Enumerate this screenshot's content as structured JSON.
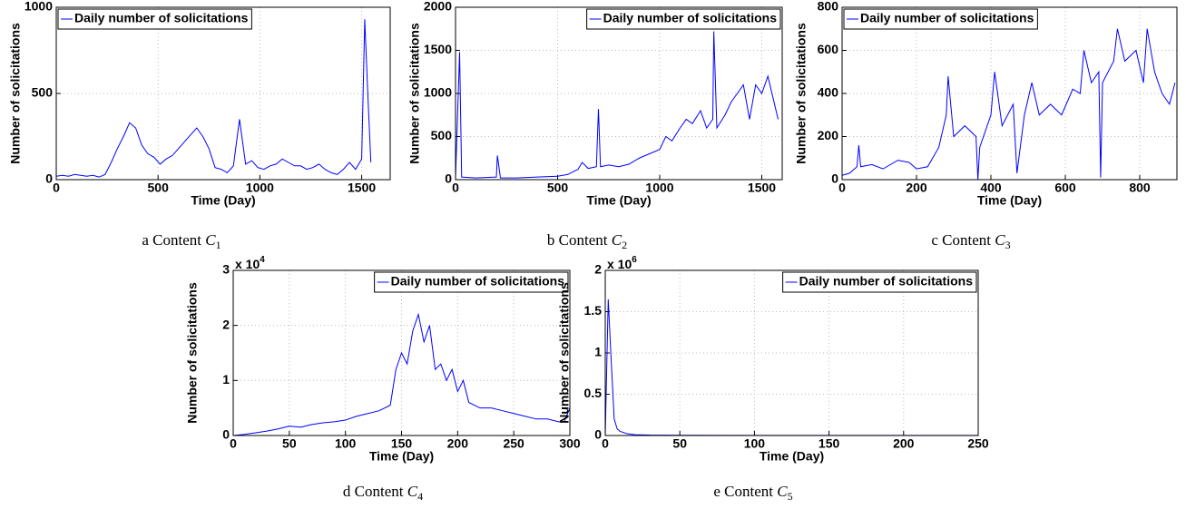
{
  "chart_data": [
    {
      "type": "line",
      "xlabel": "Time (Day)",
      "ylabel": "Number of solicitations",
      "caption_prefix": "a Content",
      "caption_symbol": "C",
      "caption_subscript": "1",
      "xlim": [
        0,
        1640
      ],
      "xticks": [
        0,
        500,
        1000,
        1500
      ],
      "ylim": [
        0,
        1000
      ],
      "yticks": [
        0,
        500,
        1000
      ],
      "grid": true,
      "legend": "upper left",
      "x": [
        0,
        30,
        60,
        90,
        120,
        150,
        180,
        210,
        240,
        270,
        300,
        330,
        360,
        390,
        420,
        450,
        480,
        510,
        540,
        570,
        600,
        630,
        660,
        690,
        720,
        750,
        780,
        810,
        840,
        870,
        900,
        930,
        960,
        990,
        1020,
        1050,
        1080,
        1110,
        1140,
        1170,
        1200,
        1230,
        1260,
        1290,
        1320,
        1350,
        1380,
        1410,
        1440,
        1470,
        1500,
        1515,
        1530,
        1545
      ],
      "series": [
        {
          "name": "Daily number of solicitations",
          "color": "#0000ff",
          "values": [
            20,
            25,
            20,
            30,
            25,
            20,
            25,
            15,
            30,
            100,
            180,
            250,
            330,
            300,
            200,
            150,
            130,
            90,
            120,
            140,
            180,
            220,
            260,
            300,
            250,
            180,
            70,
            60,
            40,
            80,
            350,
            90,
            110,
            70,
            60,
            80,
            90,
            120,
            100,
            80,
            80,
            60,
            70,
            90,
            60,
            40,
            30,
            60,
            100,
            60,
            120,
            930,
            500,
            100
          ]
        }
      ]
    },
    {
      "type": "line",
      "xlabel": "Time (Day)",
      "ylabel": "Number of solicitations",
      "caption_prefix": "b Content",
      "caption_symbol": "C",
      "caption_subscript": "2",
      "xlim": [
        0,
        1600
      ],
      "xticks": [
        0,
        500,
        1000,
        1500
      ],
      "ylim": [
        0,
        2000
      ],
      "yticks": [
        0,
        500,
        1000,
        1500,
        2000
      ],
      "grid": true,
      "legend": "upper right",
      "x": [
        0,
        20,
        30,
        100,
        200,
        205,
        220,
        300,
        400,
        500,
        550,
        600,
        620,
        650,
        690,
        700,
        710,
        750,
        800,
        850,
        900,
        950,
        1000,
        1030,
        1060,
        1100,
        1130,
        1160,
        1200,
        1230,
        1260,
        1265,
        1280,
        1320,
        1350,
        1380,
        1410,
        1440,
        1470,
        1500,
        1530,
        1560,
        1580
      ],
      "series": [
        {
          "name": "Daily number of solicitations",
          "color": "#0000ff",
          "values": [
            20,
            1480,
            30,
            20,
            30,
            280,
            20,
            20,
            30,
            40,
            60,
            120,
            200,
            130,
            150,
            820,
            150,
            170,
            150,
            180,
            250,
            300,
            350,
            500,
            450,
            600,
            700,
            650,
            800,
            600,
            700,
            1720,
            600,
            750,
            900,
            1000,
            1100,
            700,
            1100,
            1000,
            1200,
            900,
            700
          ]
        }
      ]
    },
    {
      "type": "line",
      "xlabel": "Time (Day)",
      "ylabel": "Number of solicitations",
      "caption_prefix": "c Content",
      "caption_symbol": "C",
      "caption_subscript": "3",
      "xlim": [
        0,
        900
      ],
      "xticks": [
        0,
        200,
        400,
        600,
        800
      ],
      "ylim": [
        0,
        800
      ],
      "yticks": [
        0,
        200,
        400,
        600,
        800
      ],
      "grid": true,
      "legend": "upper left",
      "x": [
        0,
        20,
        40,
        45,
        50,
        80,
        110,
        150,
        180,
        200,
        230,
        260,
        280,
        285,
        300,
        330,
        360,
        365,
        370,
        400,
        410,
        430,
        460,
        470,
        490,
        510,
        530,
        560,
        590,
        620,
        640,
        650,
        670,
        690,
        695,
        700,
        730,
        740,
        760,
        790,
        810,
        820,
        840,
        860,
        880,
        895
      ],
      "series": [
        {
          "name": "Daily number of solicitations",
          "color": "#0000ff",
          "values": [
            20,
            30,
            60,
            160,
            60,
            70,
            50,
            90,
            80,
            50,
            60,
            150,
            300,
            480,
            200,
            250,
            200,
            0,
            150,
            300,
            500,
            250,
            350,
            30,
            300,
            450,
            300,
            350,
            300,
            420,
            400,
            600,
            450,
            500,
            10,
            450,
            550,
            700,
            550,
            600,
            450,
            700,
            500,
            400,
            350,
            450
          ]
        }
      ]
    },
    {
      "type": "line",
      "xlabel": "Time (Day)",
      "ylabel": "Number of solicitations",
      "caption_prefix": "d Content",
      "caption_symbol": "C",
      "caption_subscript": "4",
      "y_scale_text": "x 10",
      "y_scale_exponent": "4",
      "xlim": [
        0,
        300
      ],
      "xticks": [
        0,
        50,
        100,
        150,
        200,
        250,
        300
      ],
      "ylim": [
        0,
        30000
      ],
      "yticks": [
        0,
        {
          "value": 10000,
          "label": "1"
        },
        {
          "value": 20000,
          "label": "2"
        },
        {
          "value": 30000,
          "label": "3"
        }
      ],
      "grid": true,
      "legend": "upper right",
      "x": [
        0,
        10,
        20,
        30,
        40,
        50,
        60,
        70,
        80,
        90,
        100,
        110,
        120,
        130,
        140,
        145,
        150,
        155,
        160,
        165,
        170,
        175,
        180,
        185,
        190,
        195,
        200,
        205,
        210,
        220,
        230,
        240,
        250,
        260,
        270,
        280,
        290,
        295,
        300
      ],
      "series": [
        {
          "name": "Daily number of solicitations",
          "color": "#0000ff",
          "values": [
            0,
            200,
            500,
            800,
            1200,
            1700,
            1500,
            2000,
            2300,
            2500,
            2800,
            3500,
            4000,
            4500,
            5500,
            12000,
            15000,
            13000,
            19000,
            22000,
            17000,
            20000,
            12000,
            13000,
            10000,
            12000,
            8000,
            10000,
            6000,
            5000,
            5000,
            4500,
            4000,
            3500,
            3000,
            3000,
            2500,
            2500,
            5000
          ]
        }
      ]
    },
    {
      "type": "line",
      "xlabel": "Time (Day)",
      "ylabel": "Number of solicitations",
      "caption_prefix": "e Content",
      "caption_symbol": "C",
      "caption_subscript": "5",
      "y_scale_text": "x 10",
      "y_scale_exponent": "6",
      "xlim": [
        0,
        250
      ],
      "xticks": [
        0,
        50,
        100,
        150,
        200,
        250
      ],
      "ylim": [
        0,
        2000000
      ],
      "yticks": [
        0,
        {
          "value": 500000,
          "label": "0.5"
        },
        {
          "value": 1000000,
          "label": "1"
        },
        {
          "value": 1500000,
          "label": "1.5"
        },
        {
          "value": 2000000,
          "label": "2"
        }
      ],
      "grid": true,
      "legend": "upper right",
      "x": [
        0,
        2,
        4,
        6,
        8,
        10,
        15,
        20,
        30,
        50,
        100,
        150,
        200,
        250
      ],
      "series": [
        {
          "name": "Daily number of solicitations",
          "color": "#0000ff",
          "values": [
            0,
            1650000,
            900000,
            200000,
            80000,
            50000,
            20000,
            10000,
            5000,
            3000,
            2000,
            1500,
            1000,
            1000
          ]
        }
      ]
    }
  ]
}
